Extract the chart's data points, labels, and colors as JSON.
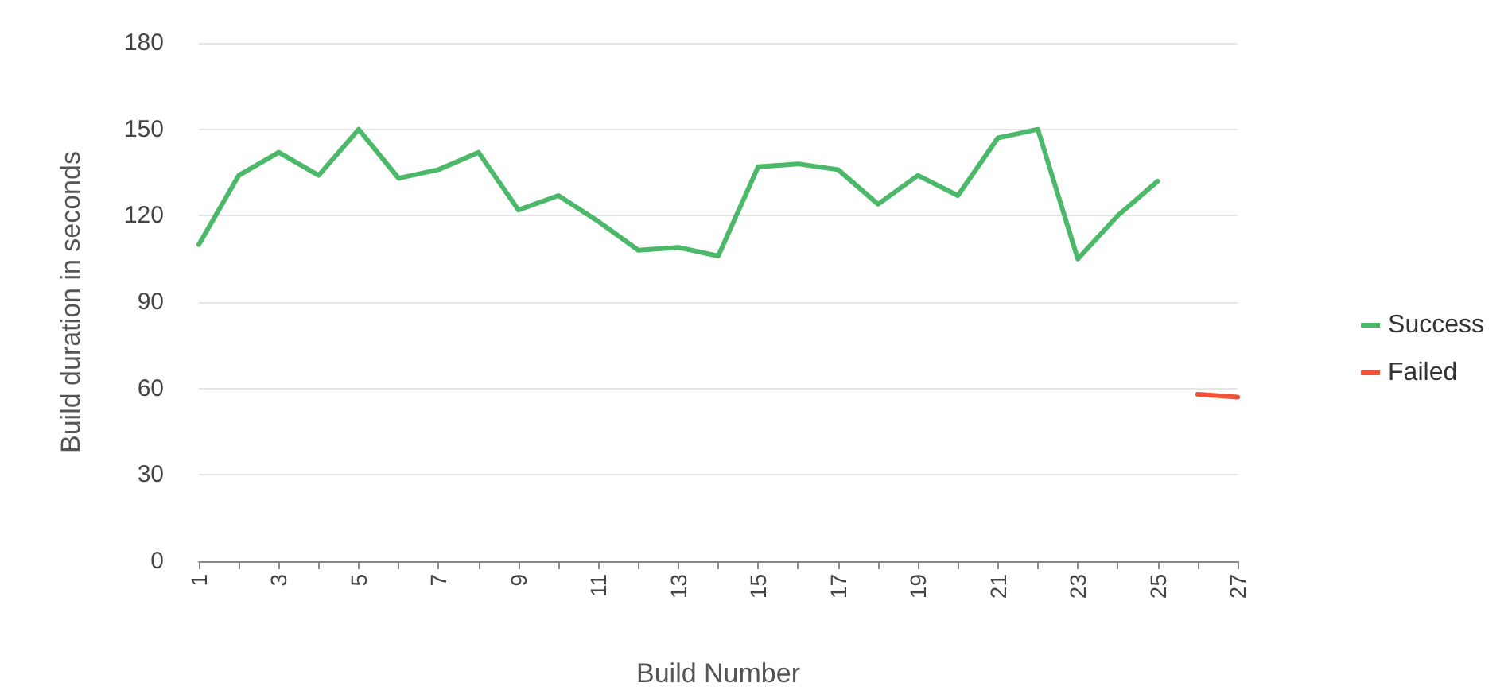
{
  "chart_data": {
    "type": "line",
    "xlabel": "Build Number",
    "ylabel": "Build duration in seconds",
    "categories": [
      "1",
      null,
      "3",
      null,
      "5",
      null,
      "7",
      null,
      "9",
      null,
      "11",
      null,
      "13",
      null,
      "15",
      null,
      "17",
      null,
      "19",
      null,
      "21",
      null,
      "23",
      null,
      "25",
      null,
      "27"
    ],
    "series": [
      {
        "name": "Success",
        "color": "#4cb86a",
        "values": [
          110,
          134,
          142,
          134,
          150,
          133,
          136,
          142,
          122,
          127,
          118,
          108,
          109,
          106,
          137,
          138,
          136,
          124,
          134,
          127,
          147,
          150,
          105,
          120,
          132,
          null,
          null
        ]
      },
      {
        "name": "Failed",
        "color": "#f0523a",
        "values": [
          null,
          null,
          null,
          null,
          null,
          null,
          null,
          null,
          null,
          null,
          null,
          null,
          null,
          null,
          null,
          null,
          null,
          null,
          null,
          null,
          null,
          null,
          null,
          null,
          null,
          58,
          57
        ]
      }
    ],
    "ylim": [
      0,
      180
    ],
    "yticks": [
      0,
      30,
      60,
      90,
      120,
      150,
      180
    ],
    "grid": "y",
    "legend": "right",
    "marker": "none",
    "line_style": "solid"
  }
}
